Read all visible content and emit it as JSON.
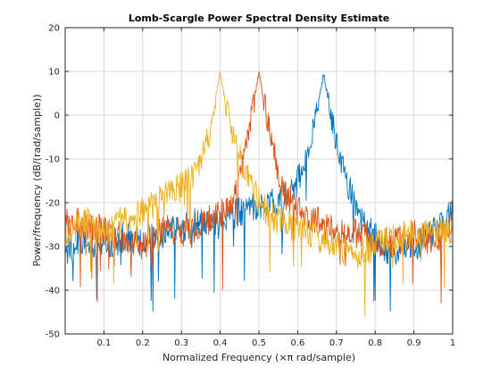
{
  "chart_data": {
    "type": "line",
    "title": "Lomb-Scargle Power Spectral Density Estimate",
    "xlabel": "Normalized Frequency  (×π rad/sample)",
    "ylabel": "Power/frequency (dB/(rad/sample))",
    "xlim": [
      0,
      1
    ],
    "ylim": [
      -50,
      20
    ],
    "xticks": [
      0.1,
      0.2,
      0.3,
      0.4,
      0.5,
      0.6,
      0.7,
      0.8,
      0.9,
      1
    ],
    "xtick_labels": [
      "0.1",
      "0.2",
      "0.3",
      "0.4",
      "0.5",
      "0.6",
      "0.7",
      "0.8",
      "0.9",
      "1"
    ],
    "yticks": [
      -50,
      -40,
      -30,
      -20,
      -10,
      0,
      10,
      20
    ],
    "ytick_labels": [
      "-50",
      "-40",
      "-30",
      "-20",
      "-10",
      "0",
      "10",
      "20"
    ],
    "grid": true,
    "series": [
      {
        "color": "#0072BD",
        "peak": {
          "x": 0.667,
          "y": 9.5
        },
        "x": [
          0.0,
          0.05,
          0.1,
          0.15,
          0.2,
          0.25,
          0.3,
          0.35,
          0.4,
          0.45,
          0.5,
          0.55,
          0.6,
          0.62,
          0.64,
          0.667,
          0.69,
          0.71,
          0.73,
          0.75,
          0.8,
          0.85,
          0.9,
          0.95,
          1.0
        ],
        "y": [
          -31,
          -29,
          -30,
          -28,
          -29,
          -27,
          -26,
          -24,
          -25,
          -22,
          -21,
          -20,
          -15,
          -10,
          -3,
          9.5,
          -2,
          -10,
          -16,
          -22,
          -28,
          -32,
          -30,
          -27,
          -21
        ]
      },
      {
        "color": "#D95319",
        "peak": {
          "x": 0.5,
          "y": 9.7
        },
        "x": [
          0.0,
          0.05,
          0.1,
          0.15,
          0.2,
          0.25,
          0.3,
          0.35,
          0.4,
          0.44,
          0.47,
          0.5,
          0.53,
          0.56,
          0.6,
          0.65,
          0.7,
          0.75,
          0.8,
          0.85,
          0.9,
          0.95,
          1.0
        ],
        "y": [
          -24,
          -25,
          -26,
          -28,
          -30,
          -26,
          -27,
          -25,
          -23,
          -18,
          -6,
          9.7,
          -5,
          -17,
          -22,
          -24,
          -27,
          -27,
          -29,
          -29,
          -27,
          -29,
          -25
        ]
      },
      {
        "color": "#EDB120",
        "peak": {
          "x": 0.4,
          "y": 9.8
        },
        "x": [
          0.0,
          0.05,
          0.1,
          0.15,
          0.2,
          0.25,
          0.3,
          0.34,
          0.37,
          0.4,
          0.43,
          0.46,
          0.5,
          0.55,
          0.6,
          0.65,
          0.7,
          0.75,
          0.8,
          0.85,
          0.9,
          0.95,
          1.0
        ],
        "y": [
          -27,
          -24,
          -27,
          -24,
          -22,
          -19,
          -16,
          -13,
          -5,
          9.8,
          -4,
          -12,
          -20,
          -24,
          -26,
          -28,
          -30,
          -32,
          -30,
          -28,
          -27,
          -27,
          -26
        ]
      }
    ]
  }
}
